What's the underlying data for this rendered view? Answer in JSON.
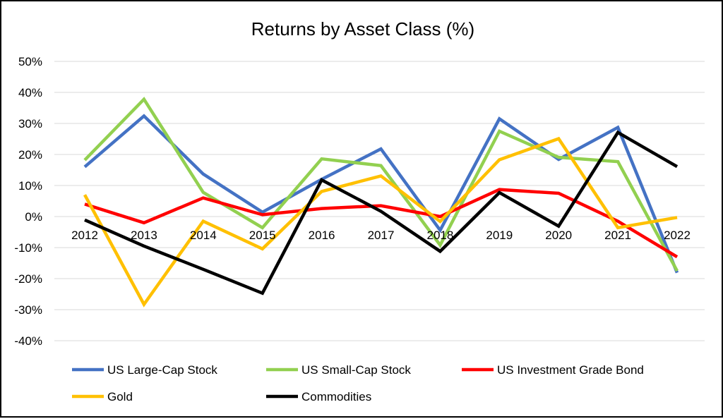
{
  "chart_data": {
    "type": "line",
    "title": "Returns by Asset Class (%)",
    "xlabel": "",
    "ylabel": "",
    "categories": [
      "2012",
      "2013",
      "2014",
      "2015",
      "2016",
      "2017",
      "2018",
      "2019",
      "2020",
      "2021",
      "2022"
    ],
    "y_ticks": [
      "50%",
      "40%",
      "30%",
      "20%",
      "10%",
      "0%",
      "-10%",
      "-20%",
      "-30%",
      "-40%"
    ],
    "ylim": [
      -40,
      50
    ],
    "grid": true,
    "legend_position": "bottom",
    "series": [
      {
        "name": "US Large-Cap Stock",
        "color": "#4472C4",
        "values": [
          16.0,
          32.4,
          13.7,
          1.4,
          12.0,
          21.8,
          -4.4,
          31.5,
          18.4,
          28.7,
          -18.1
        ]
      },
      {
        "name": "US Small-Cap Stock",
        "color": "#92D050",
        "values": [
          18.2,
          37.8,
          7.8,
          -3.6,
          18.6,
          16.4,
          -9.2,
          27.5,
          19.1,
          17.7,
          -17.5
        ]
      },
      {
        "name": "US Investment Grade Bond",
        "color": "#FF0000",
        "values": [
          4.0,
          -2.0,
          6.0,
          0.6,
          2.6,
          3.5,
          0.0,
          8.7,
          7.5,
          -1.5,
          -13.0
        ]
      },
      {
        "name": "Gold",
        "color": "#FFC000",
        "values": [
          7.0,
          -28.3,
          -1.5,
          -10.4,
          8.1,
          13.1,
          -1.6,
          18.3,
          25.1,
          -3.6,
          -0.3
        ]
      },
      {
        "name": "Commodities",
        "color": "#000000",
        "values": [
          -1.1,
          -9.5,
          -17.0,
          -24.7,
          11.8,
          1.7,
          -11.2,
          7.7,
          -3.1,
          27.1,
          16.1
        ]
      }
    ]
  }
}
